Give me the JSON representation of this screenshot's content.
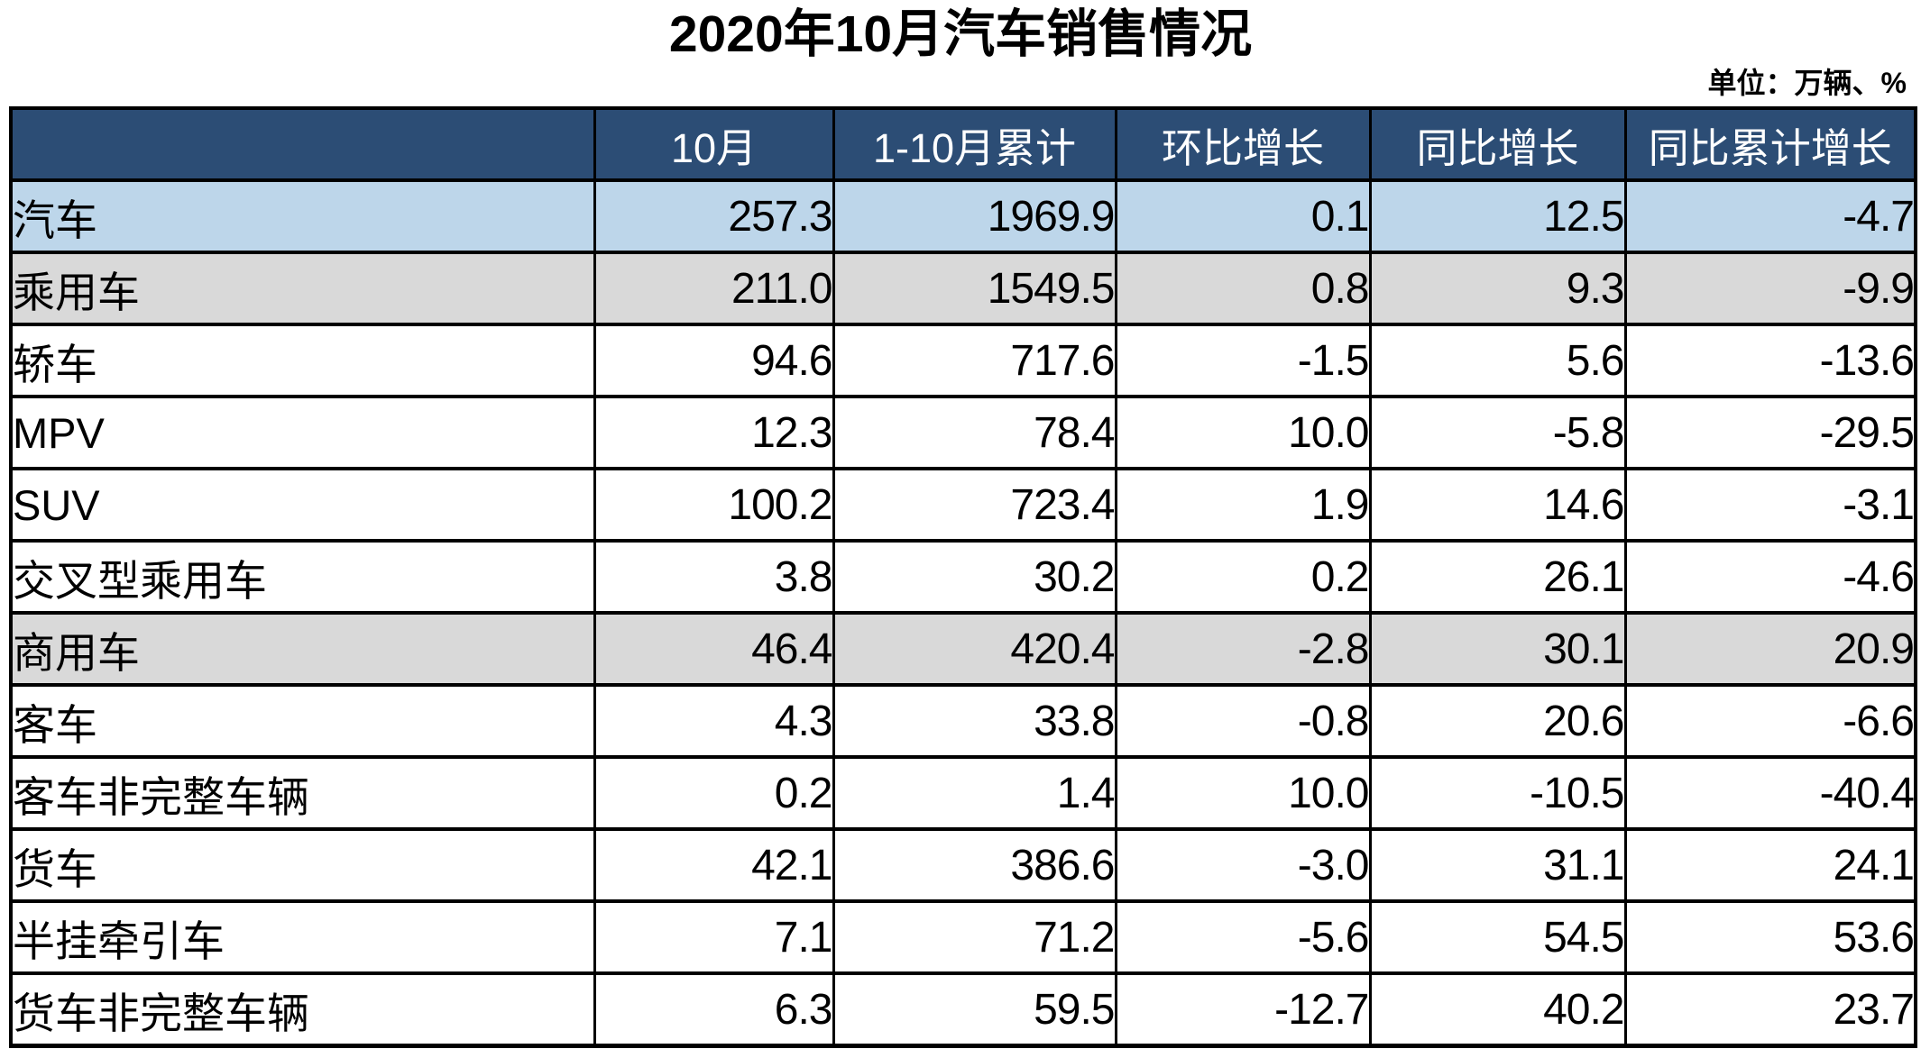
{
  "title": "2020年10月汽车销售情况",
  "unit_note": "单位：万辆、%",
  "colors": {
    "header_bg": "#2C4D75",
    "header_text": "#FFFFFF",
    "total_row_bg": "#BDD6EA",
    "section_row_bg": "#D9D9D9",
    "detail_row_bg": "#FFFFFF",
    "border": "#000000"
  },
  "table": {
    "columns": [
      "",
      "10月",
      "1-10月累计",
      "环比增长",
      "同比增长",
      "同比累计增长"
    ],
    "rows": [
      {
        "label": "汽车",
        "level": 0,
        "shade": "blue",
        "values": [
          "257.3",
          "1969.9",
          "0.1",
          "12.5",
          "-4.7"
        ]
      },
      {
        "label": "乘用车",
        "level": 1,
        "shade": "gray",
        "values": [
          "211.0",
          "1549.5",
          "0.8",
          "9.3",
          "-9.9"
        ]
      },
      {
        "label": "轿车",
        "level": 2,
        "shade": "white",
        "values": [
          "94.6",
          "717.6",
          "-1.5",
          "5.6",
          "-13.6"
        ]
      },
      {
        "label": "MPV",
        "level": 2,
        "shade": "white",
        "values": [
          "12.3",
          "78.4",
          "10.0",
          "-5.8",
          "-29.5"
        ]
      },
      {
        "label": "SUV",
        "level": 2,
        "shade": "white",
        "values": [
          "100.2",
          "723.4",
          "1.9",
          "14.6",
          "-3.1"
        ]
      },
      {
        "label": "交叉型乘用车",
        "level": 2,
        "shade": "white",
        "values": [
          "3.8",
          "30.2",
          "0.2",
          "26.1",
          "-4.6"
        ]
      },
      {
        "label": "商用车",
        "level": 1,
        "shade": "gray",
        "values": [
          "46.4",
          "420.4",
          "-2.8",
          "30.1",
          "20.9"
        ]
      },
      {
        "label": "客车",
        "level": 2,
        "shade": "white",
        "values": [
          "4.3",
          "33.8",
          "-0.8",
          "20.6",
          "-6.6"
        ]
      },
      {
        "label": "客车非完整车辆",
        "level": 3,
        "shade": "white",
        "values": [
          "0.2",
          "1.4",
          "10.0",
          "-10.5",
          "-40.4"
        ]
      },
      {
        "label": "货车",
        "level": 2,
        "shade": "white",
        "values": [
          "42.1",
          "386.6",
          "-3.0",
          "31.1",
          "24.1"
        ]
      },
      {
        "label": "半挂牵引车",
        "level": 3,
        "shade": "white",
        "values": [
          "7.1",
          "71.2",
          "-5.6",
          "54.5",
          "53.6"
        ]
      },
      {
        "label": "货车非完整车辆",
        "level": 3,
        "shade": "white",
        "values": [
          "6.3",
          "59.5",
          "-12.7",
          "40.2",
          "23.7"
        ]
      }
    ]
  },
  "chart_data": {
    "type": "table",
    "title": "2020年10月汽车销售情况",
    "unit": "万辆、%",
    "columns": [
      "10月",
      "1-10月累计",
      "环比增长",
      "同比增长",
      "同比累计增长"
    ],
    "rows": [
      {
        "category": "汽车",
        "values": [
          257.3,
          1969.9,
          0.1,
          12.5,
          -4.7
        ]
      },
      {
        "category": "乘用车",
        "values": [
          211.0,
          1549.5,
          0.8,
          9.3,
          -9.9
        ]
      },
      {
        "category": "轿车",
        "values": [
          94.6,
          717.6,
          -1.5,
          5.6,
          -13.6
        ]
      },
      {
        "category": "MPV",
        "values": [
          12.3,
          78.4,
          10.0,
          -5.8,
          -29.5
        ]
      },
      {
        "category": "SUV",
        "values": [
          100.2,
          723.4,
          1.9,
          14.6,
          -3.1
        ]
      },
      {
        "category": "交叉型乘用车",
        "values": [
          3.8,
          30.2,
          0.2,
          26.1,
          -4.6
        ]
      },
      {
        "category": "商用车",
        "values": [
          46.4,
          420.4,
          -2.8,
          30.1,
          20.9
        ]
      },
      {
        "category": "客车",
        "values": [
          4.3,
          33.8,
          -0.8,
          20.6,
          -6.6
        ]
      },
      {
        "category": "客车非完整车辆",
        "values": [
          0.2,
          1.4,
          10.0,
          -10.5,
          -40.4
        ]
      },
      {
        "category": "货车",
        "values": [
          42.1,
          386.6,
          -3.0,
          31.1,
          24.1
        ]
      },
      {
        "category": "半挂牵引车",
        "values": [
          7.1,
          71.2,
          -5.6,
          54.5,
          53.6
        ]
      },
      {
        "category": "货车非完整车辆",
        "values": [
          6.3,
          59.5,
          -12.7,
          40.2,
          23.7
        ]
      }
    ]
  }
}
